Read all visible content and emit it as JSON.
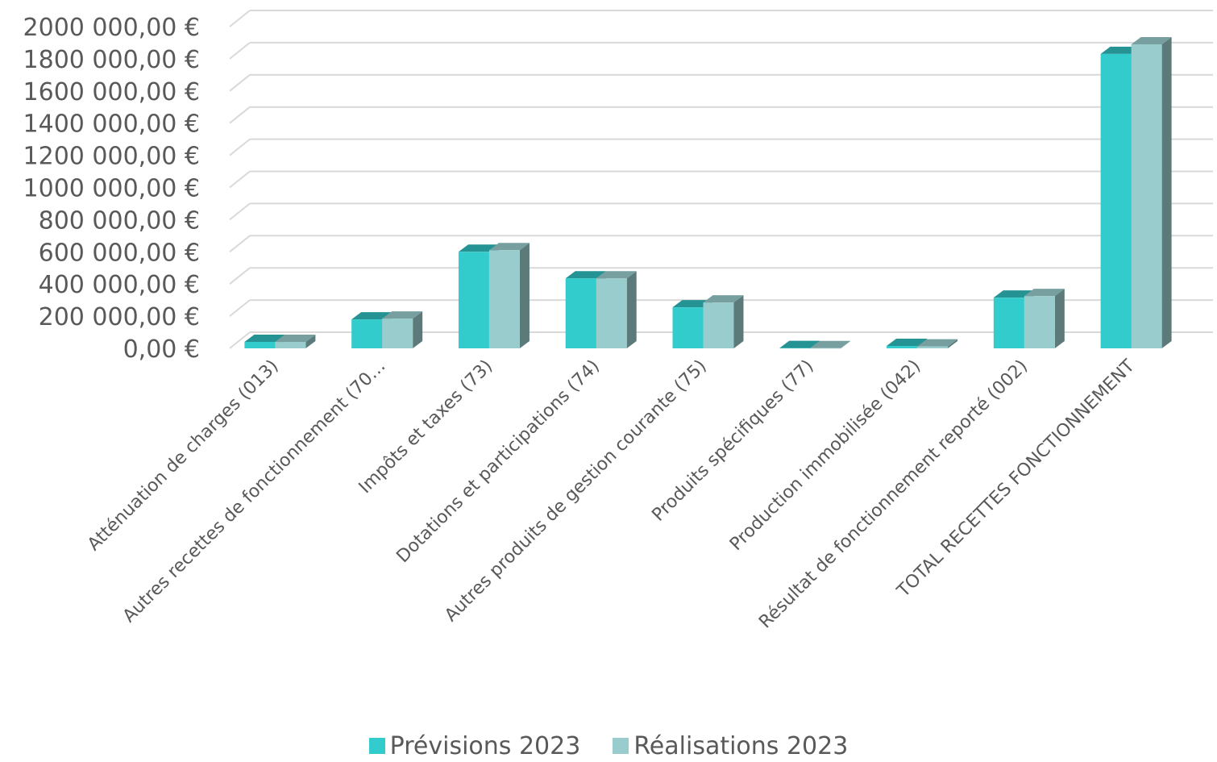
{
  "chart_data": {
    "type": "bar",
    "title": "",
    "xlabel": "",
    "ylabel": "",
    "categories": [
      "Atténuation de charges (013)",
      "Autres recettes de fonctionnement (70…",
      "Impôts et taxes (73)",
      "Dotations et participations (74)",
      "Autres produits de gestion courante (75)",
      "Produits spécifiques (77)",
      "Production immobilisée (042)",
      "Résultat de fonctionnement reporté (002)",
      "TOTAL RECETTES FONCTIONNEMENT"
    ],
    "series": [
      {
        "name": "Prévisions 2023",
        "color": "#33CCCC",
        "values": [
          40000,
          180000,
          600000,
          435000,
          255000,
          2000,
          15000,
          315000,
          1830000
        ]
      },
      {
        "name": "Réalisations 2023",
        "color": "#99CCCC",
        "values": [
          40000,
          185000,
          610000,
          435000,
          285000,
          1000,
          12000,
          325000,
          1890000
        ]
      }
    ],
    "ylim": [
      0,
      2000000
    ],
    "yticks": [
      "0,00 €",
      "200 000,00 €",
      "400 000,00 €",
      "600 000,00 €",
      "800 000,00 €",
      "1000 000,00 €",
      "1200 000,00 €",
      "1400 000,00 €",
      "1600 000,00 €",
      "1800 000,00 €",
      "2000 000,00 €"
    ],
    "grid": true,
    "legend_position": "bottom",
    "style": "3d-clustered-column"
  }
}
